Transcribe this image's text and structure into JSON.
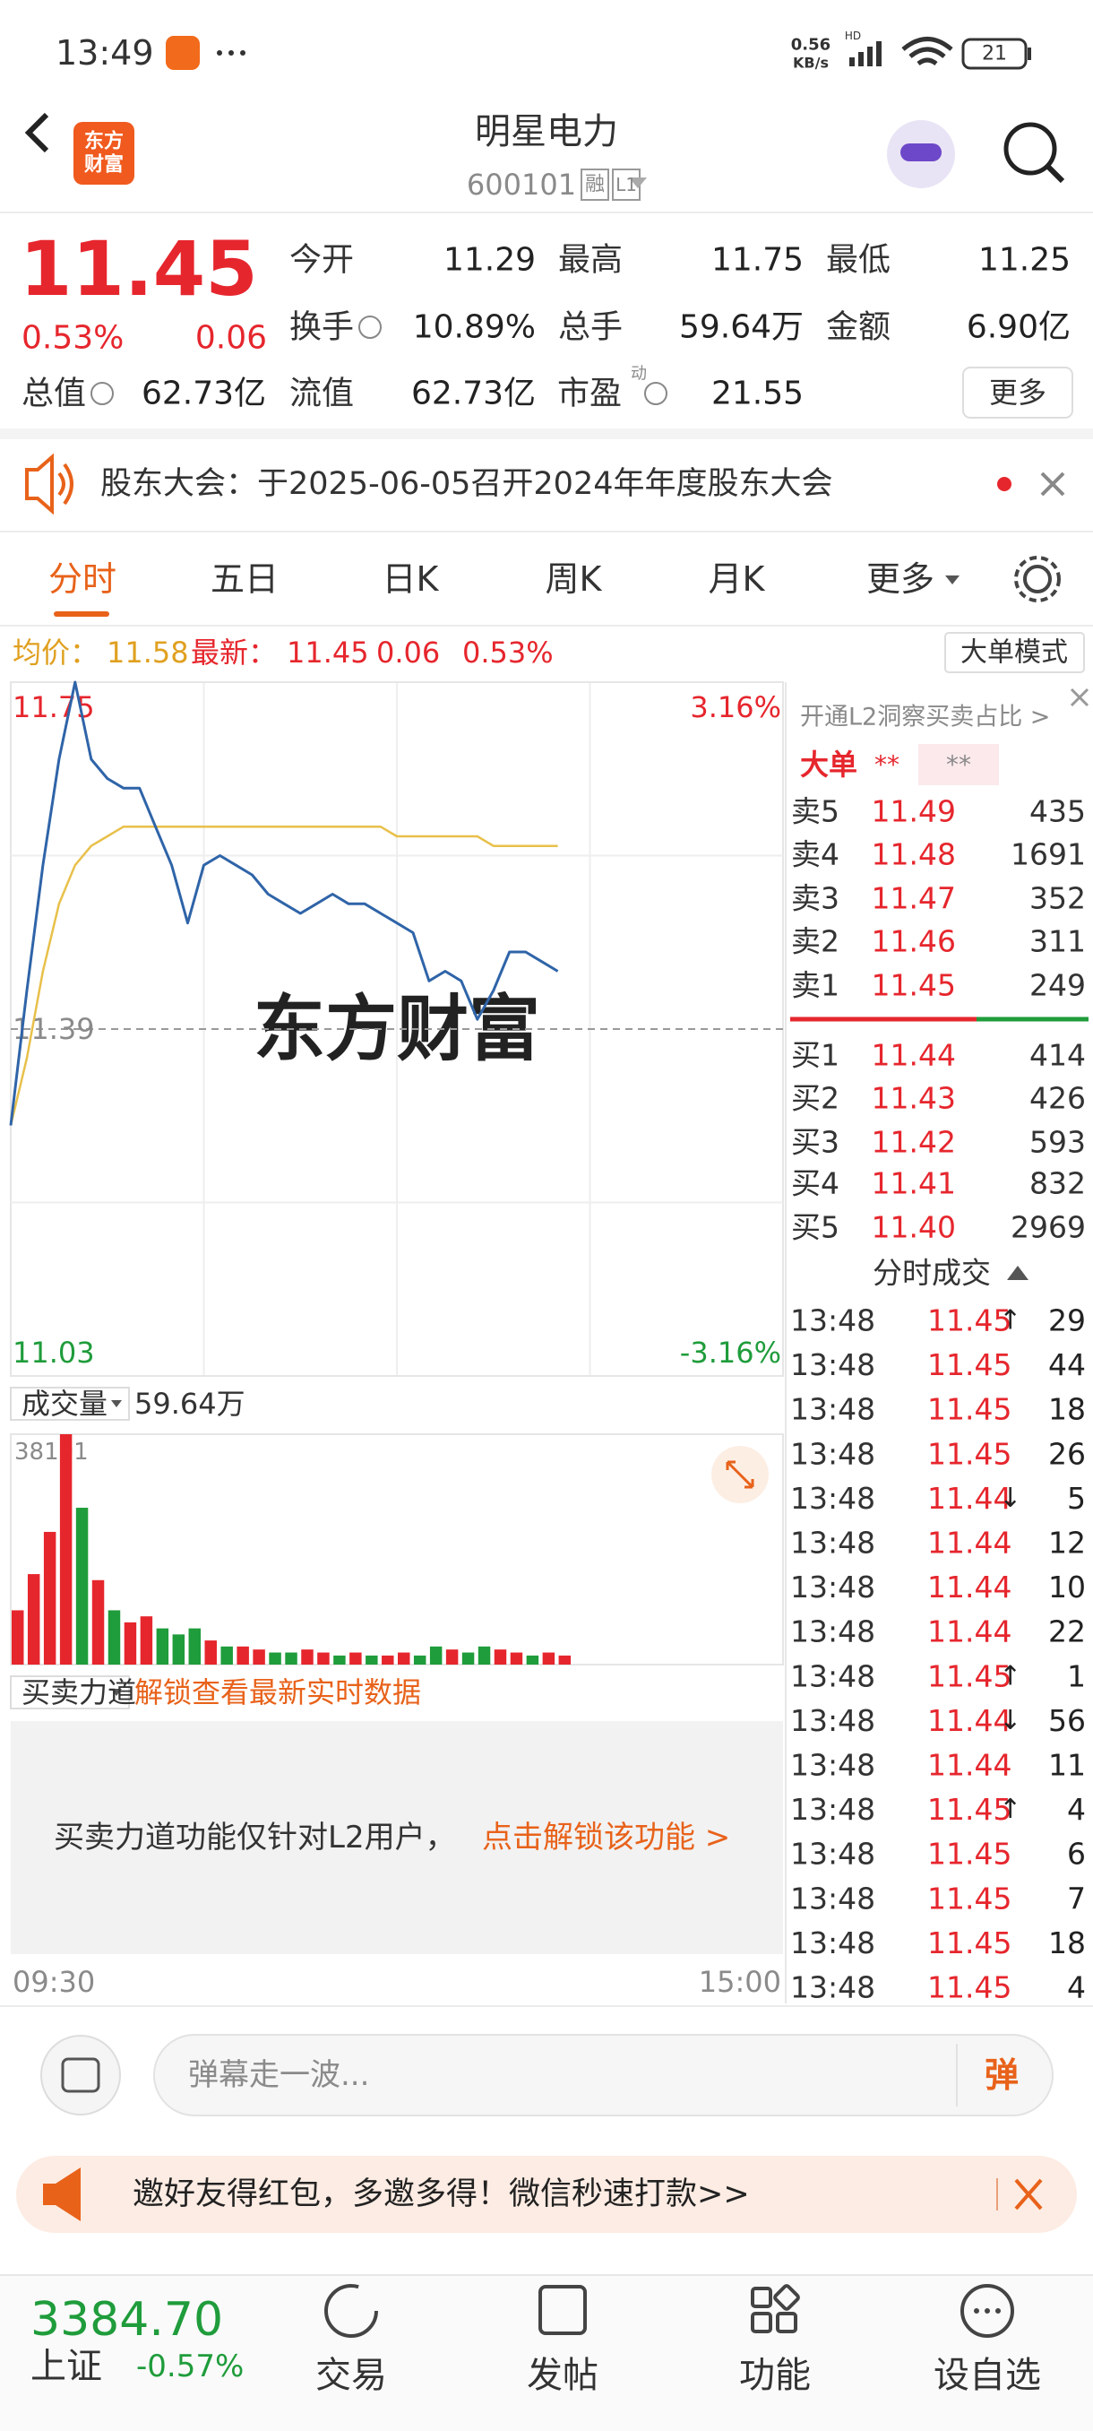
{
  "status_bar": {
    "time": "13:49",
    "net_speed": "0.56",
    "net_unit": "KB/s",
    "network": "HD",
    "battery": "21"
  },
  "header": {
    "logo": [
      "东方",
      "财富"
    ],
    "title": "明星电力",
    "code": "600101",
    "badges": [
      "融",
      "L1"
    ]
  },
  "quote": {
    "price": "11.45",
    "change_pct": "0.53%",
    "change": "0.06",
    "fields": [
      {
        "label": "今开",
        "value": "11.29",
        "color": "#1f9c3b"
      },
      {
        "label": "最高",
        "value": "11.75",
        "color": "#e6262d"
      },
      {
        "label": "最低",
        "value": "11.25",
        "color": "#1f9c3b"
      },
      {
        "label": "换手",
        "value": "10.89%",
        "color": "#222222"
      },
      {
        "label": "总手",
        "value": "59.64万",
        "color": "#222222"
      },
      {
        "label": "金额",
        "value": "6.90亿",
        "color": "#222222"
      },
      {
        "label": "总值",
        "value": "62.73亿",
        "color": "#222222"
      },
      {
        "label": "流值",
        "value": "62.73亿",
        "color": "#222222"
      },
      {
        "label": "市盈",
        "label_sup": "动",
        "value": "21.55",
        "color": "#222222"
      }
    ],
    "more": "更多"
  },
  "notice": {
    "text": "股东大会：于2025-06-05召开2024年年度股东大会"
  },
  "tabs": [
    "分时",
    "五日",
    "日K",
    "周K",
    "月K",
    "更多"
  ],
  "info_line": {
    "avg_value": "11.58",
    "last_value": "11.45",
    "change": "0.06",
    "change_pct": "0.53%",
    "mode_button": "大单模式"
  },
  "chart_data": [
    {
      "type": "line",
      "watermark": "东方财富",
      "x": [
        0,
        5,
        10,
        15,
        20,
        25,
        30,
        35,
        40,
        45,
        50,
        55,
        60,
        65,
        70,
        75,
        80,
        85,
        90,
        95,
        100,
        105,
        110,
        115,
        120,
        125,
        130,
        135,
        140,
        145,
        150,
        155,
        160,
        165,
        170
      ],
      "xlim": [
        0,
        240
      ],
      "xticks": [
        {
          "value": 0,
          "label": "09:30"
        },
        {
          "value": 240,
          "label": "15:00"
        }
      ],
      "ylim": [
        11.03,
        11.75
      ],
      "yticks": [
        11.03,
        11.39,
        11.75
      ],
      "y2lim": [
        -3.16,
        3.16
      ],
      "y2ticks": [
        {
          "value": -3.16,
          "label": "-3.16%"
        },
        {
          "value": 3.16,
          "label": "3.16%"
        }
      ],
      "grid": true,
      "series": [
        {
          "name": "均价：",
          "color": "#e8c04a",
          "values": [
            11.29,
            11.36,
            11.45,
            11.52,
            11.56,
            11.58,
            11.59,
            11.6,
            11.6,
            11.6,
            11.6,
            11.6,
            11.6,
            11.6,
            11.6,
            11.6,
            11.6,
            11.6,
            11.6,
            11.6,
            11.6,
            11.6,
            11.6,
            11.6,
            11.59,
            11.59,
            11.59,
            11.59,
            11.59,
            11.59,
            11.58,
            11.58,
            11.58,
            11.58,
            11.58
          ]
        },
        {
          "name": "最新：",
          "color": "#2f64a8",
          "values": [
            11.29,
            11.43,
            11.56,
            11.67,
            11.75,
            11.67,
            11.65,
            11.64,
            11.64,
            11.6,
            11.56,
            11.5,
            11.56,
            11.57,
            11.56,
            11.55,
            11.53,
            11.52,
            11.51,
            11.52,
            11.53,
            11.52,
            11.52,
            11.51,
            11.5,
            11.49,
            11.44,
            11.45,
            11.44,
            11.4,
            11.43,
            11.47,
            11.47,
            11.46,
            11.45
          ]
        }
      ]
    },
    {
      "type": "bar",
      "title": "成交量",
      "subtitle": "59.64万",
      "x": [
        0,
        5,
        10,
        15,
        20,
        25,
        30,
        35,
        40,
        45,
        50,
        55,
        60,
        65,
        70,
        75,
        80,
        85,
        90,
        95,
        100,
        105,
        110,
        115,
        120,
        125,
        130,
        135,
        140,
        145,
        150,
        155,
        160,
        165,
        170
      ],
      "xlim": [
        0,
        240
      ],
      "ylim": [
        0,
        38191
      ],
      "yticks": [
        38191
      ],
      "values": [
        9000,
        15000,
        22000,
        38191,
        26000,
        14000,
        9000,
        7000,
        8000,
        6000,
        5000,
        6000,
        4000,
        3000,
        3000,
        2500,
        2000,
        2000,
        2500,
        2000,
        1500,
        2000,
        1500,
        1500,
        2000,
        1500,
        3000,
        2500,
        2000,
        3000,
        2500,
        2000,
        1500,
        2000,
        1500
      ],
      "colors": [
        "#e6262d",
        "#e6262d",
        "#e6262d",
        "#e6262d",
        "#1f9c3b",
        "#e6262d",
        "#1f9c3b",
        "#e6262d",
        "#e6262d",
        "#1f9c3b",
        "#1f9c3b",
        "#1f9c3b",
        "#e6262d",
        "#1f9c3b",
        "#e6262d",
        "#e6262d",
        "#1f9c3b",
        "#1f9c3b",
        "#e6262d",
        "#e6262d",
        "#1f9c3b",
        "#e6262d",
        "#1f9c3b",
        "#e6262d",
        "#e6262d",
        "#1f9c3b",
        "#1f9c3b",
        "#e6262d",
        "#1f9c3b",
        "#1f9c3b",
        "#e6262d",
        "#e6262d",
        "#1f9c3b",
        "#e6262d",
        "#e6262d"
      ]
    }
  ],
  "power": {
    "title": "买卖力道",
    "unlock": "解锁查看最新实时数据",
    "message": "买卖力道功能仅针对L2用户，",
    "action": "点击解锁该功能 >"
  },
  "order_book": {
    "promo": "开通L2洞察买卖占比 >",
    "tabs": [
      "大单",
      "**",
      "**"
    ],
    "asks": [
      {
        "label": "卖5",
        "price": "11.49",
        "volume": "435"
      },
      {
        "label": "卖4",
        "price": "11.48",
        "volume": "1691"
      },
      {
        "label": "卖3",
        "price": "11.47",
        "volume": "352"
      },
      {
        "label": "卖2",
        "price": "11.46",
        "volume": "311"
      },
      {
        "label": "卖1",
        "price": "11.45",
        "volume": "249"
      }
    ],
    "bids": [
      {
        "label": "买1",
        "price": "11.44",
        "volume": "414"
      },
      {
        "label": "买2",
        "price": "11.43",
        "volume": "426"
      },
      {
        "label": "买3",
        "price": "11.42",
        "volume": "593"
      },
      {
        "label": "买4",
        "price": "11.41",
        "volume": "832"
      },
      {
        "label": "买5",
        "price": "11.40",
        "volume": "2969"
      }
    ],
    "trades_title": "分时成交"
  },
  "trades": [
    {
      "time": "13:48",
      "price": "11.45",
      "arrow": "↑",
      "volume": "29",
      "color": "#e6262d"
    },
    {
      "time": "13:48",
      "price": "11.45",
      "volume": "44",
      "color": "#e6262d"
    },
    {
      "time": "13:48",
      "price": "11.45",
      "volume": "18",
      "color": "#e6262d"
    },
    {
      "time": "13:48",
      "price": "11.45",
      "volume": "26",
      "color": "#e6262d"
    },
    {
      "time": "13:48",
      "price": "11.44",
      "arrow": "↓",
      "volume": "5",
      "color": "#1f9c3b"
    },
    {
      "time": "13:48",
      "price": "11.44",
      "volume": "12",
      "color": "#1f9c3b"
    },
    {
      "time": "13:48",
      "price": "11.44",
      "volume": "10",
      "color": "#1f9c3b"
    },
    {
      "time": "13:48",
      "price": "11.44",
      "volume": "22",
      "color": "#1f9c3b"
    },
    {
      "time": "13:48",
      "price": "11.45",
      "arrow": "↑",
      "volume": "1",
      "color": "#e6262d"
    },
    {
      "time": "13:48",
      "price": "11.44",
      "arrow": "↓",
      "volume": "56",
      "color": "#1f9c3b"
    },
    {
      "time": "13:48",
      "price": "11.44",
      "volume": "11",
      "color": "#1f9c3b"
    },
    {
      "time": "13:48",
      "price": "11.45",
      "arrow": "↑",
      "volume": "4",
      "color": "#e6262d"
    },
    {
      "time": "13:48",
      "price": "11.45",
      "volume": "6",
      "color": "#e6262d"
    },
    {
      "time": "13:48",
      "price": "11.45",
      "volume": "7",
      "color": "#e6262d"
    },
    {
      "time": "13:48",
      "price": "11.45",
      "volume": "18",
      "color": "#e6262d"
    },
    {
      "time": "13:48",
      "price": "11.45",
      "volume": "4",
      "color": "#e6262d"
    }
  ],
  "comment": {
    "placeholder": "弹幕走一波...",
    "button": "弹"
  },
  "promo": {
    "text": "邀好友得红包，多邀多得！微信秒速打款>>"
  },
  "bottom_nav": {
    "index_value": "3384.70",
    "index_name": "上证",
    "index_change": "-0.57%",
    "items": [
      "交易",
      "发帖",
      "功能",
      "设自选"
    ]
  }
}
